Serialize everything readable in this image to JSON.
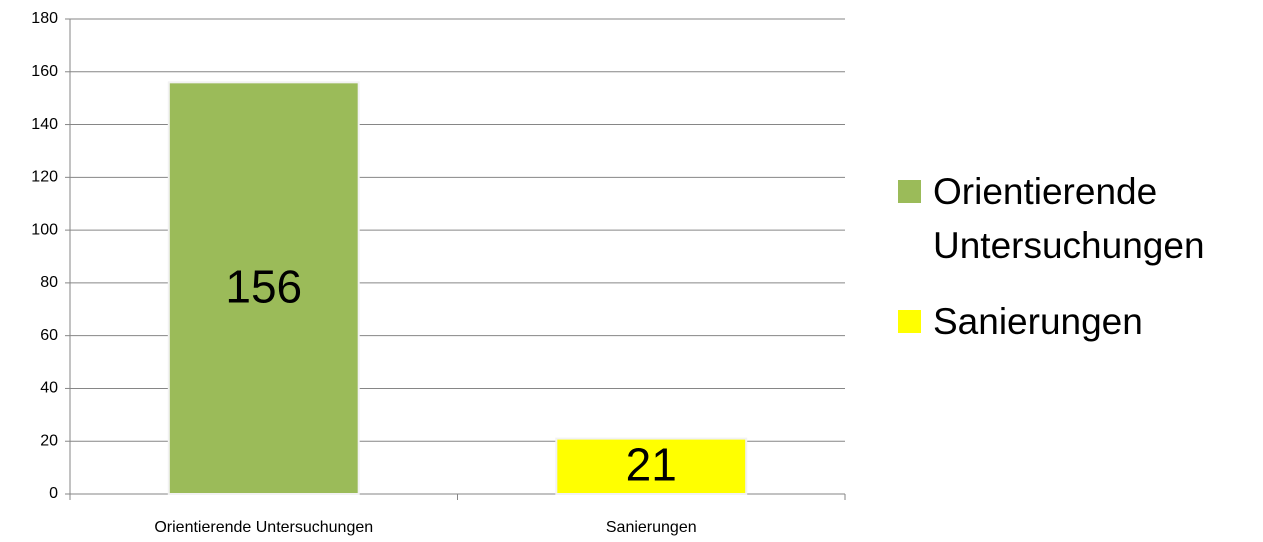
{
  "chart_data": {
    "type": "bar",
    "categories": [
      "Orientierende Untersuchungen",
      "Sanierungen"
    ],
    "series": [
      {
        "name": "Orientierende Untersuchungen",
        "color": "#9bbb59",
        "values": [
          156,
          null
        ]
      },
      {
        "name": "Sanierungen",
        "color": "#ffff00",
        "values": [
          null,
          21
        ]
      }
    ],
    "ylim": [
      0,
      180
    ],
    "yticks": [
      0,
      20,
      40,
      60,
      80,
      100,
      120,
      140,
      160,
      180
    ],
    "grid": true,
    "legend": "right"
  }
}
